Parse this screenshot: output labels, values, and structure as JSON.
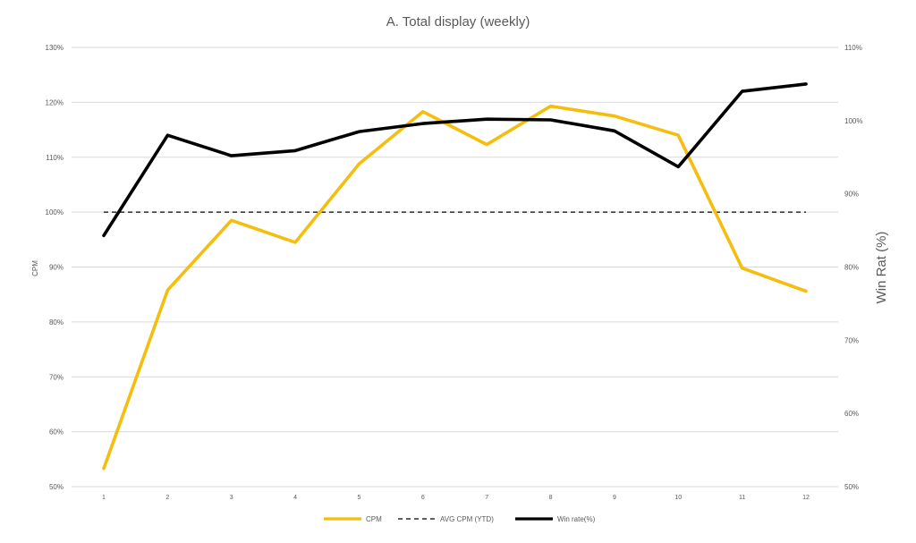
{
  "chart_data": {
    "type": "line",
    "title": "A. Total display (weekly)",
    "ylabel": "CPM",
    "y2label": "Win Rat (%)",
    "categories": [
      "1",
      "2",
      "3",
      "4",
      "5",
      "6",
      "7",
      "8",
      "9",
      "10",
      "11",
      "12"
    ],
    "ylim": [
      50,
      130
    ],
    "y2lim": [
      50,
      110
    ],
    "y_ticks": [
      "50%",
      "60%",
      "70%",
      "80%",
      "90%",
      "100%",
      "110%",
      "120%",
      "130%"
    ],
    "y2_ticks": [
      "50%",
      "60%",
      "70%",
      "80%",
      "90%",
      "100%",
      "110%"
    ],
    "grid": true,
    "legend_position": "bottom",
    "series": [
      {
        "name": "CPM",
        "axis": "left",
        "color": "#F5BD0E",
        "dash": false,
        "values": [
          53.3,
          85.8,
          98.5,
          94.5,
          108.8,
          118.3,
          112.3,
          119.3,
          117.5,
          114.0,
          89.8,
          85.6
        ]
      },
      {
        "name": "AVG CPM (YTD)",
        "axis": "left",
        "color": "#000000",
        "dash": true,
        "values": [
          100,
          100,
          100,
          100,
          100,
          100,
          100,
          100,
          100,
          100,
          100,
          100
        ]
      },
      {
        "name": "Win rate(%)",
        "axis": "right",
        "color": "#000000",
        "dash": false,
        "values": [
          84.3,
          98.0,
          95.2,
          95.9,
          98.5,
          99.6,
          100.2,
          100.1,
          98.6,
          93.7,
          104.0,
          105.0
        ]
      }
    ]
  }
}
